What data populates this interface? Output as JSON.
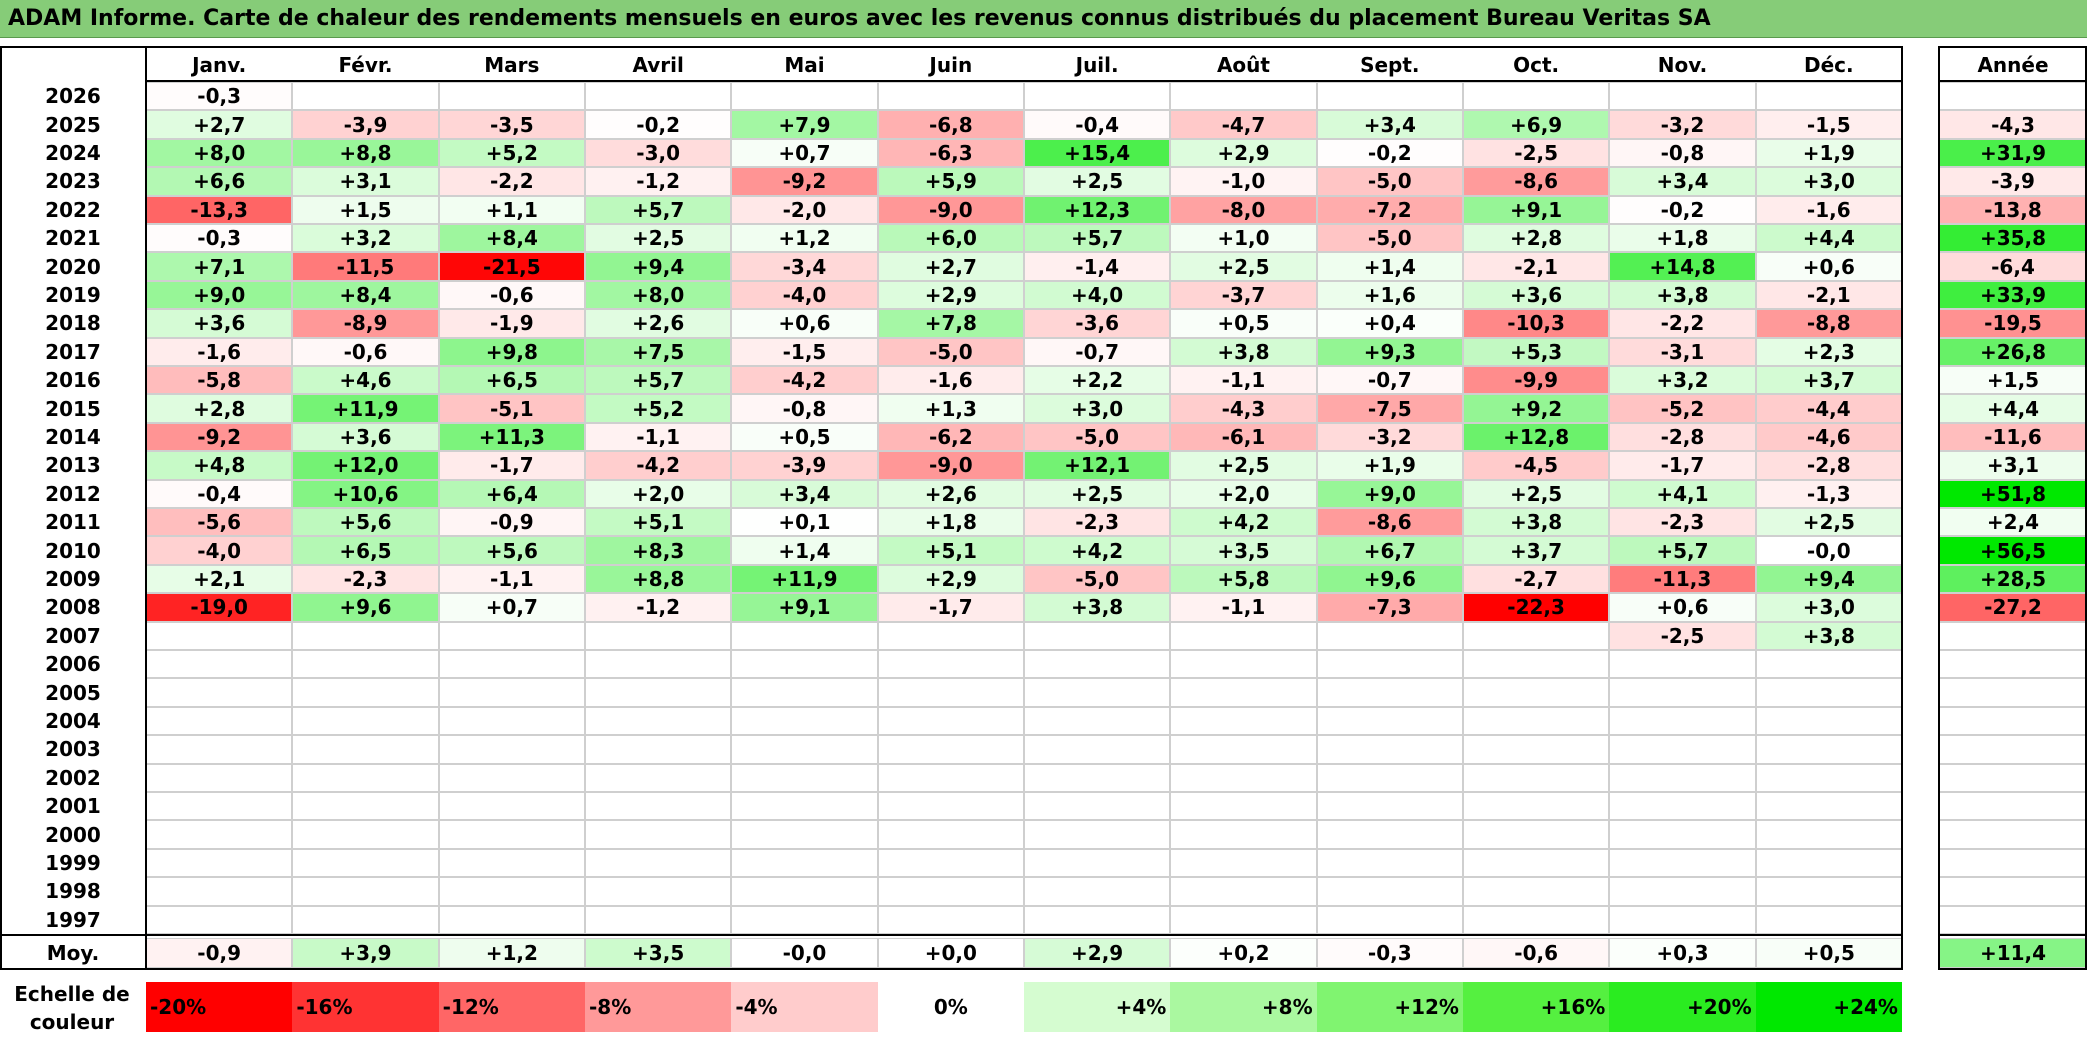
{
  "title": "ADAM Informe. Carte de chaleur des rendements mensuels en euros avec les revenus connus distribués du placement Bureau Veritas SA",
  "colors": {
    "title_bg": "#86cc78",
    "neg_max": "#ff0000",
    "pos_max": "#00ee00",
    "neutral": "#ffffff"
  },
  "chart_data": {
    "type": "heatmap",
    "title": "ADAM Informe. Carte de chaleur des rendements mensuels en euros avec les revenus connus distribués du placement Bureau Veritas SA",
    "months": [
      "Janv.",
      "Févr.",
      "Mars",
      "Avril",
      "Mai",
      "Juin",
      "Juil.",
      "Août",
      "Sept.",
      "Oct.",
      "Nov.",
      "Déc."
    ],
    "annual_header": "Année",
    "average_label": "Moy.",
    "rows": [
      {
        "year": "2026",
        "values": [
          "-0,3",
          "",
          "",
          "",
          "",
          "",
          "",
          "",
          "",
          "",
          "",
          ""
        ],
        "annual": ""
      },
      {
        "year": "2025",
        "values": [
          "+2,7",
          "-3,9",
          "-3,5",
          "-0,2",
          "+7,9",
          "-6,8",
          "-0,4",
          "-4,7",
          "+3,4",
          "+6,9",
          "-3,2",
          "-1,5"
        ],
        "annual": "-4,3"
      },
      {
        "year": "2024",
        "values": [
          "+8,0",
          "+8,8",
          "+5,2",
          "-3,0",
          "+0,7",
          "-6,3",
          "+15,4",
          "+2,9",
          "-0,2",
          "-2,5",
          "-0,8",
          "+1,9"
        ],
        "annual": "+31,9"
      },
      {
        "year": "2023",
        "values": [
          "+6,6",
          "+3,1",
          "-2,2",
          "-1,2",
          "-9,2",
          "+5,9",
          "+2,5",
          "-1,0",
          "-5,0",
          "-8,6",
          "+3,4",
          "+3,0"
        ],
        "annual": "-3,9"
      },
      {
        "year": "2022",
        "values": [
          "-13,3",
          "+1,5",
          "+1,1",
          "+5,7",
          "-2,0",
          "-9,0",
          "+12,3",
          "-8,0",
          "-7,2",
          "+9,1",
          "-0,2",
          "-1,6"
        ],
        "annual": "-13,8"
      },
      {
        "year": "2021",
        "values": [
          "-0,3",
          "+3,2",
          "+8,4",
          "+2,5",
          "+1,2",
          "+6,0",
          "+5,7",
          "+1,0",
          "-5,0",
          "+2,8",
          "+1,8",
          "+4,4"
        ],
        "annual": "+35,8"
      },
      {
        "year": "2020",
        "values": [
          "+7,1",
          "-11,5",
          "-21,5",
          "+9,4",
          "-3,4",
          "+2,7",
          "-1,4",
          "+2,5",
          "+1,4",
          "-2,1",
          "+14,8",
          "+0,6"
        ],
        "annual": "-6,4"
      },
      {
        "year": "2019",
        "values": [
          "+9,0",
          "+8,4",
          "-0,6",
          "+8,0",
          "-4,0",
          "+2,9",
          "+4,0",
          "-3,7",
          "+1,6",
          "+3,6",
          "+3,8",
          "-2,1"
        ],
        "annual": "+33,9"
      },
      {
        "year": "2018",
        "values": [
          "+3,6",
          "-8,9",
          "-1,9",
          "+2,6",
          "+0,6",
          "+7,8",
          "-3,6",
          "+0,5",
          "+0,4",
          "-10,3",
          "-2,2",
          "-8,8"
        ],
        "annual": "-19,5"
      },
      {
        "year": "2017",
        "values": [
          "-1,6",
          "-0,6",
          "+9,8",
          "+7,5",
          "-1,5",
          "-5,0",
          "-0,7",
          "+3,8",
          "+9,3",
          "+5,3",
          "-3,1",
          "+2,3"
        ],
        "annual": "+26,8"
      },
      {
        "year": "2016",
        "values": [
          "-5,8",
          "+4,6",
          "+6,5",
          "+5,7",
          "-4,2",
          "-1,6",
          "+2,2",
          "-1,1",
          "-0,7",
          "-9,9",
          "+3,2",
          "+3,7"
        ],
        "annual": "+1,5"
      },
      {
        "year": "2015",
        "values": [
          "+2,8",
          "+11,9",
          "-5,1",
          "+5,2",
          "-0,8",
          "+1,3",
          "+3,0",
          "-4,3",
          "-7,5",
          "+9,2",
          "-5,2",
          "-4,4"
        ],
        "annual": "+4,4"
      },
      {
        "year": "2014",
        "values": [
          "-9,2",
          "+3,6",
          "+11,3",
          "-1,1",
          "+0,5",
          "-6,2",
          "-5,0",
          "-6,1",
          "-3,2",
          "+12,8",
          "-2,8",
          "-4,6"
        ],
        "annual": "-11,6"
      },
      {
        "year": "2013",
        "values": [
          "+4,8",
          "+12,0",
          "-1,7",
          "-4,2",
          "-3,9",
          "-9,0",
          "+12,1",
          "+2,5",
          "+1,9",
          "-4,5",
          "-1,7",
          "-2,8"
        ],
        "annual": "+3,1"
      },
      {
        "year": "2012",
        "values": [
          "-0,4",
          "+10,6",
          "+6,4",
          "+2,0",
          "+3,4",
          "+2,6",
          "+2,5",
          "+2,0",
          "+9,0",
          "+2,5",
          "+4,1",
          "-1,3"
        ],
        "annual": "+51,8"
      },
      {
        "year": "2011",
        "values": [
          "-5,6",
          "+5,6",
          "-0,9",
          "+5,1",
          "+0,1",
          "+1,8",
          "-2,3",
          "+4,2",
          "-8,6",
          "+3,8",
          "-2,3",
          "+2,5"
        ],
        "annual": "+2,4"
      },
      {
        "year": "2010",
        "values": [
          "-4,0",
          "+6,5",
          "+5,6",
          "+8,3",
          "+1,4",
          "+5,1",
          "+4,2",
          "+3,5",
          "+6,7",
          "+3,7",
          "+5,7",
          "-0,0"
        ],
        "annual": "+56,5"
      },
      {
        "year": "2009",
        "values": [
          "+2,1",
          "-2,3",
          "-1,1",
          "+8,8",
          "+11,9",
          "+2,9",
          "-5,0",
          "+5,8",
          "+9,6",
          "-2,7",
          "-11,3",
          "+9,4"
        ],
        "annual": "+28,5"
      },
      {
        "year": "2008",
        "values": [
          "-19,0",
          "+9,6",
          "+0,7",
          "-1,2",
          "+9,1",
          "-1,7",
          "+3,8",
          "-1,1",
          "-7,3",
          "-22,3",
          "+0,6",
          "+3,0"
        ],
        "annual": "-27,2"
      },
      {
        "year": "2007",
        "values": [
          "",
          "",
          "",
          "",
          "",
          "",
          "",
          "",
          "",
          "",
          "-2,5",
          "+3,8"
        ],
        "annual": ""
      },
      {
        "year": "2006",
        "values": [
          "",
          "",
          "",
          "",
          "",
          "",
          "",
          "",
          "",
          "",
          "",
          ""
        ],
        "annual": ""
      },
      {
        "year": "2005",
        "values": [
          "",
          "",
          "",
          "",
          "",
          "",
          "",
          "",
          "",
          "",
          "",
          ""
        ],
        "annual": ""
      },
      {
        "year": "2004",
        "values": [
          "",
          "",
          "",
          "",
          "",
          "",
          "",
          "",
          "",
          "",
          "",
          ""
        ],
        "annual": ""
      },
      {
        "year": "2003",
        "values": [
          "",
          "",
          "",
          "",
          "",
          "",
          "",
          "",
          "",
          "",
          "",
          ""
        ],
        "annual": ""
      },
      {
        "year": "2002",
        "values": [
          "",
          "",
          "",
          "",
          "",
          "",
          "",
          "",
          "",
          "",
          "",
          ""
        ],
        "annual": ""
      },
      {
        "year": "2001",
        "values": [
          "",
          "",
          "",
          "",
          "",
          "",
          "",
          "",
          "",
          "",
          "",
          ""
        ],
        "annual": ""
      },
      {
        "year": "2000",
        "values": [
          "",
          "",
          "",
          "",
          "",
          "",
          "",
          "",
          "",
          "",
          "",
          ""
        ],
        "annual": ""
      },
      {
        "year": "1999",
        "values": [
          "",
          "",
          "",
          "",
          "",
          "",
          "",
          "",
          "",
          "",
          "",
          ""
        ],
        "annual": ""
      },
      {
        "year": "1998",
        "values": [
          "",
          "",
          "",
          "",
          "",
          "",
          "",
          "",
          "",
          "",
          "",
          ""
        ],
        "annual": ""
      },
      {
        "year": "1997",
        "values": [
          "",
          "",
          "",
          "",
          "",
          "",
          "",
          "",
          "",
          "",
          "",
          ""
        ],
        "annual": ""
      }
    ],
    "averages": [
      "-0,9",
      "+3,9",
      "+1,2",
      "+3,5",
      "-0,0",
      "+0,0",
      "+2,9",
      "+0,2",
      "-0,3",
      "-0,6",
      "+0,3",
      "+0,5"
    ],
    "average_annual": "+11,4",
    "scale_label": "Echelle de couleur",
    "scale": [
      {
        "label": "-20%",
        "value": -20,
        "color": "#ff0000"
      },
      {
        "label": "-16%",
        "value": -16,
        "color": "#ff3333"
      },
      {
        "label": "-12%",
        "value": -12,
        "color": "#ff6666"
      },
      {
        "label": "-8%",
        "value": -8,
        "color": "#ff9999"
      },
      {
        "label": "-4%",
        "value": -4,
        "color": "#ffcccc"
      },
      {
        "label": "0%",
        "value": 0,
        "color": "#ffffff"
      },
      {
        "label": "+4%",
        "value": 4,
        "color": "#d5fcd0"
      },
      {
        "label": "+8%",
        "value": 8,
        "color": "#aaf8a0"
      },
      {
        "label": "+12%",
        "value": 12,
        "color": "#80f470"
      },
      {
        "label": "+16%",
        "value": 16,
        "color": "#55f040"
      },
      {
        "label": "+20%",
        "value": 20,
        "color": "#2aec20"
      },
      {
        "label": "+24%",
        "value": 24,
        "color": "#00e800"
      }
    ]
  }
}
